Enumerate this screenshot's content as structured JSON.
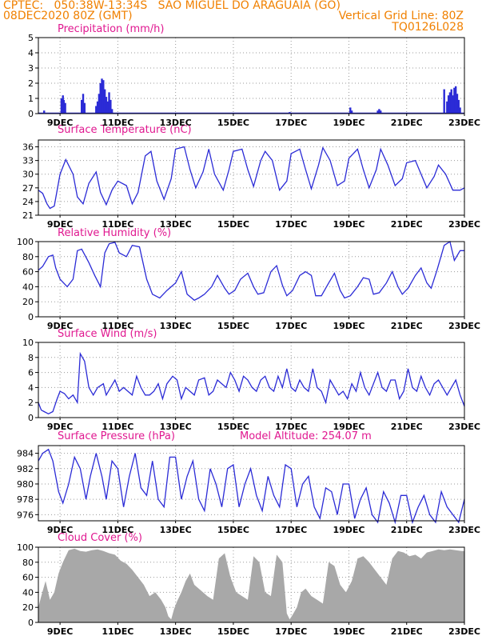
{
  "header": {
    "line1": "CPTEC:   050:38W-13:34S   SAO MIGUEL DO ARAGUAIA (GO)",
    "line2_left": "08DEC2020 80Z (GMT)",
    "line2_right": "Vertical Grid Line: 80Z",
    "line3_right": "TQ0126L028"
  },
  "colors": {
    "line": "#2b2bd6",
    "bar": "#2b2bd6",
    "cloud": "#a8a8a8",
    "title": "#e01890",
    "header": "#f08000",
    "grid": "#9a9a9a"
  },
  "chart_data": [
    {
      "type": "bar",
      "title": "Precipitation (mm/h)",
      "ylim": [
        0,
        5
      ],
      "yticks": [
        0,
        1,
        2,
        3,
        4,
        5
      ],
      "xlim": [
        8.25,
        23
      ],
      "xticks": [
        9,
        11,
        13,
        15,
        17,
        19,
        21,
        23
      ],
      "xticklabels": [
        "9DEC",
        "11DEC",
        "13DEC",
        "15DEC",
        "17DEC",
        "19DEC",
        "21DEC",
        "23DEC"
      ],
      "grid": true,
      "x": [
        8.45,
        9.05,
        9.1,
        9.13,
        9.18,
        9.75,
        9.8,
        9.85,
        10.25,
        10.3,
        10.35,
        10.4,
        10.45,
        10.5,
        10.55,
        10.6,
        10.65,
        10.7,
        10.75,
        10.8,
        16.95,
        19.05,
        19.1,
        20.0,
        20.05,
        20.1,
        22.3,
        22.4,
        22.45,
        22.5,
        22.55,
        22.6,
        22.65,
        22.7,
        22.75,
        22.8,
        22.85
      ],
      "values": [
        0.2,
        1.0,
        1.2,
        0.9,
        0.7,
        0.9,
        1.3,
        0.7,
        0.5,
        0.8,
        1.3,
        2.0,
        2.3,
        2.2,
        1.6,
        1.1,
        0.8,
        1.4,
        0.9,
        0.3,
        0.1,
        0.4,
        0.2,
        0.2,
        0.3,
        0.2,
        1.6,
        0.8,
        1.2,
        1.4,
        1.6,
        1.2,
        1.7,
        1.8,
        1.3,
        0.9,
        0.4
      ]
    },
    {
      "type": "line",
      "title": "Surface Temperature (nC)",
      "ylim": [
        21,
        37.5
      ],
      "yticks": [
        21,
        24,
        27,
        30,
        33,
        36
      ],
      "xlim": [
        8.25,
        23
      ],
      "xticks": [
        9,
        11,
        13,
        15,
        17,
        19,
        21,
        23
      ],
      "xticklabels": [
        "9DEC",
        "11DEC",
        "13DEC",
        "15DEC",
        "17DEC",
        "19DEC",
        "21DEC",
        "23DEC"
      ],
      "grid": true,
      "x": [
        8.25,
        8.4,
        8.55,
        8.65,
        8.8,
        9.0,
        9.2,
        9.45,
        9.6,
        9.8,
        10.0,
        10.25,
        10.4,
        10.6,
        10.8,
        11.0,
        11.3,
        11.5,
        11.7,
        11.95,
        12.15,
        12.35,
        12.6,
        12.85,
        13.0,
        13.3,
        13.5,
        13.7,
        13.95,
        14.15,
        14.35,
        14.65,
        14.85,
        15.0,
        15.3,
        15.5,
        15.7,
        15.95,
        16.1,
        16.35,
        16.6,
        16.85,
        17.0,
        17.3,
        17.5,
        17.7,
        17.95,
        18.1,
        18.35,
        18.6,
        18.85,
        19.0,
        19.3,
        19.5,
        19.7,
        19.95,
        20.1,
        20.35,
        20.6,
        20.85,
        21.0,
        21.3,
        21.5,
        21.7,
        21.95,
        22.1,
        22.35,
        22.6,
        22.85,
        23.0
      ],
      "y": [
        26.5,
        25.8,
        23.5,
        22.5,
        23,
        30,
        33.2,
        30,
        25,
        23.5,
        28,
        30.5,
        26,
        23.3,
        26.5,
        28.5,
        27.5,
        23.5,
        26,
        34,
        35,
        28.5,
        24.5,
        29,
        35.5,
        36,
        31,
        27,
        30.5,
        35.5,
        30,
        26.5,
        31,
        35,
        35.5,
        31,
        27.3,
        33,
        35,
        33,
        26.5,
        28.5,
        34.5,
        35.5,
        31,
        26.8,
        32,
        35.8,
        33,
        27.5,
        28.5,
        33.5,
        35.5,
        31,
        27,
        31,
        35.5,
        32,
        27.5,
        29,
        32.5,
        33,
        30,
        27,
        29.5,
        32,
        30,
        26.5,
        26.5,
        27
      ]
    },
    {
      "type": "line",
      "title": "Relative Humidity (%)",
      "ylim": [
        0,
        100
      ],
      "yticks": [
        0,
        20,
        40,
        60,
        80,
        100
      ],
      "xlim": [
        8.25,
        23
      ],
      "xticks": [
        9,
        11,
        13,
        15,
        17,
        19,
        21,
        23
      ],
      "xticklabels": [
        "9DEC",
        "11DEC",
        "13DEC",
        "15DEC",
        "17DEC",
        "19DEC",
        "21DEC",
        "23DEC"
      ],
      "grid": true,
      "x": [
        8.25,
        8.4,
        8.6,
        8.75,
        8.85,
        9.0,
        9.25,
        9.45,
        9.6,
        9.75,
        10.0,
        10.2,
        10.4,
        10.55,
        10.7,
        10.9,
        11.05,
        11.3,
        11.5,
        11.75,
        12.0,
        12.2,
        12.45,
        12.7,
        13.0,
        13.2,
        13.4,
        13.65,
        13.8,
        14.0,
        14.25,
        14.45,
        14.7,
        14.85,
        15.05,
        15.25,
        15.5,
        15.7,
        15.85,
        16.05,
        16.3,
        16.5,
        16.7,
        16.85,
        17.05,
        17.3,
        17.5,
        17.7,
        17.85,
        18.05,
        18.3,
        18.5,
        18.7,
        18.85,
        19.05,
        19.3,
        19.5,
        19.7,
        19.85,
        20.05,
        20.3,
        20.5,
        20.7,
        20.85,
        21.05,
        21.3,
        21.5,
        21.7,
        21.85,
        22.05,
        22.3,
        22.5,
        22.65,
        22.85,
        23.0
      ],
      "y": [
        62,
        67,
        80,
        82,
        65,
        50,
        40,
        50,
        88,
        90,
        72,
        55,
        40,
        85,
        97,
        99,
        85,
        80,
        95,
        93,
        50,
        30,
        25,
        35,
        45,
        60,
        30,
        22,
        25,
        30,
        40,
        55,
        38,
        30,
        35,
        50,
        58,
        40,
        30,
        32,
        60,
        68,
        42,
        28,
        35,
        55,
        60,
        55,
        28,
        28,
        45,
        58,
        35,
        25,
        28,
        40,
        52,
        50,
        30,
        32,
        45,
        60,
        40,
        30,
        38,
        55,
        65,
        45,
        38,
        62,
        95,
        100,
        75,
        88,
        88
      ]
    },
    {
      "type": "line",
      "title": "Surface Wind (m/s)",
      "ylim": [
        0,
        10
      ],
      "yticks": [
        0,
        2,
        4,
        6,
        8,
        10
      ],
      "xlim": [
        8.25,
        23
      ],
      "xticks": [
        9,
        11,
        13,
        15,
        17,
        19,
        21,
        23
      ],
      "xticklabels": [
        "9DEC",
        "11DEC",
        "13DEC",
        "15DEC",
        "17DEC",
        "19DEC",
        "21DEC",
        "23DEC"
      ],
      "grid": true,
      "x": [
        8.25,
        8.35,
        8.45,
        8.6,
        8.75,
        8.9,
        9.0,
        9.15,
        9.3,
        9.45,
        9.6,
        9.7,
        9.85,
        10.0,
        10.15,
        10.3,
        10.5,
        10.6,
        10.75,
        10.9,
        11.05,
        11.2,
        11.35,
        11.5,
        11.65,
        11.8,
        11.95,
        12.1,
        12.25,
        12.4,
        12.55,
        12.7,
        12.9,
        13.05,
        13.2,
        13.35,
        13.5,
        13.65,
        13.8,
        14.0,
        14.15,
        14.3,
        14.45,
        14.6,
        14.75,
        14.9,
        15.05,
        15.2,
        15.35,
        15.5,
        15.65,
        15.8,
        15.95,
        16.1,
        16.25,
        16.4,
        16.55,
        16.7,
        16.85,
        17.0,
        17.15,
        17.3,
        17.45,
        17.6,
        17.75,
        17.9,
        18.05,
        18.2,
        18.35,
        18.5,
        18.65,
        18.8,
        18.95,
        19.1,
        19.25,
        19.4,
        19.55,
        19.7,
        19.85,
        20.0,
        20.15,
        20.3,
        20.45,
        20.6,
        20.75,
        20.9,
        21.05,
        21.2,
        21.35,
        21.5,
        21.65,
        21.8,
        21.95,
        22.1,
        22.25,
        22.4,
        22.55,
        22.7,
        22.85,
        23.0
      ],
      "y": [
        2,
        1,
        0.8,
        0.5,
        0.8,
        2.5,
        3.5,
        3.2,
        2.5,
        3,
        2,
        8.5,
        7.5,
        4,
        3,
        4,
        4.5,
        3,
        4,
        5,
        3.5,
        4,
        3.5,
        3,
        5.5,
        4,
        3,
        3,
        3.5,
        4.5,
        2.5,
        4.5,
        5.5,
        5,
        2.5,
        4,
        3.5,
        3,
        5,
        5.3,
        3,
        3.5,
        5,
        4.5,
        4,
        6,
        5,
        3.5,
        5.5,
        5,
        4,
        3.5,
        5,
        5.5,
        4,
        3.5,
        5.5,
        4,
        6.5,
        4,
        3.5,
        5,
        4,
        3.5,
        6.5,
        4,
        3.5,
        2,
        5,
        4,
        3,
        3.5,
        2.5,
        4.5,
        3.5,
        6,
        4,
        3,
        4.5,
        6,
        4,
        3.5,
        5,
        5,
        2.5,
        3.5,
        6.5,
        4,
        3.5,
        5.5,
        4,
        3,
        4.5,
        5,
        4,
        3,
        4,
        5,
        3,
        1.5
      ]
    },
    {
      "type": "line",
      "title": "Surface Pressure (hPa)",
      "annotation": "Model Altitude: 254.07 m",
      "ylim": [
        975.2,
        985.0
      ],
      "yticks": [
        976,
        978,
        980,
        982,
        984
      ],
      "xlim": [
        8.25,
        23
      ],
      "xticks": [
        9,
        11,
        13,
        15,
        17,
        19,
        21,
        23
      ],
      "xticklabels": [
        "9DEC",
        "11DEC",
        "13DEC",
        "15DEC",
        "17DEC",
        "19DEC",
        "21DEC",
        "23DEC"
      ],
      "grid": true,
      "x": [
        8.25,
        8.4,
        8.6,
        8.75,
        8.95,
        9.1,
        9.3,
        9.5,
        9.7,
        9.9,
        10.05,
        10.25,
        10.45,
        10.6,
        10.8,
        11.0,
        11.2,
        11.4,
        11.6,
        11.8,
        12.0,
        12.2,
        12.4,
        12.6,
        12.8,
        13.0,
        13.2,
        13.4,
        13.6,
        13.8,
        14.0,
        14.2,
        14.4,
        14.6,
        14.8,
        15.0,
        15.2,
        15.4,
        15.6,
        15.8,
        16.0,
        16.2,
        16.4,
        16.6,
        16.8,
        17.0,
        17.2,
        17.4,
        17.6,
        17.8,
        18.0,
        18.2,
        18.4,
        18.6,
        18.8,
        19.0,
        19.2,
        19.4,
        19.6,
        19.8,
        20.0,
        20.2,
        20.4,
        20.6,
        20.8,
        21.0,
        21.2,
        21.4,
        21.6,
        21.8,
        22.0,
        22.2,
        22.4,
        22.6,
        22.8,
        23.0
      ],
      "y": [
        983,
        984,
        984.5,
        983,
        979,
        977.5,
        980,
        983.5,
        982,
        978,
        981,
        984,
        981,
        978,
        983,
        982,
        977,
        981,
        984,
        979.5,
        978.5,
        983,
        978,
        977,
        983.5,
        983.5,
        978,
        981,
        983,
        978,
        976.5,
        982,
        980,
        977,
        982,
        982.5,
        977,
        980,
        982,
        978.5,
        976.5,
        981,
        978.5,
        977,
        982.5,
        982,
        977,
        980,
        981,
        977,
        975.5,
        979.5,
        979,
        976,
        980,
        980,
        975.5,
        978,
        979.5,
        976,
        975,
        979,
        977.5,
        975,
        978.5,
        978.5,
        975,
        977,
        978.5,
        976,
        975,
        979,
        977,
        976,
        975,
        978
      ]
    },
    {
      "type": "area",
      "title": "Cloud Cover (%)",
      "ylim": [
        0,
        100
      ],
      "yticks": [
        0,
        20,
        40,
        60,
        80,
        100
      ],
      "xlim": [
        8.25,
        23
      ],
      "xticks": [
        9,
        11,
        13,
        15,
        17,
        19,
        21,
        23
      ],
      "xticklabels": [
        "9DEC",
        "11DEC",
        "13DEC",
        "15DEC",
        "17DEC",
        "19DEC",
        "21DEC",
        "23DEC"
      ],
      "grid": true,
      "x": [
        8.25,
        8.35,
        8.5,
        8.65,
        8.8,
        8.95,
        9.1,
        9.3,
        9.5,
        9.7,
        9.9,
        10.1,
        10.3,
        10.5,
        10.7,
        10.9,
        11.1,
        11.3,
        11.5,
        11.7,
        11.9,
        12.1,
        12.3,
        12.5,
        12.65,
        12.75,
        12.85,
        12.95,
        13.05,
        13.2,
        13.35,
        13.5,
        13.65,
        13.8,
        13.95,
        14.1,
        14.3,
        14.5,
        14.7,
        14.9,
        15.1,
        15.3,
        15.5,
        15.7,
        15.9,
        16.1,
        16.3,
        16.5,
        16.7,
        16.85,
        16.95,
        17.05,
        17.2,
        17.35,
        17.5,
        17.7,
        17.9,
        18.1,
        18.3,
        18.5,
        18.7,
        18.9,
        19.1,
        19.3,
        19.5,
        19.7,
        19.9,
        20.1,
        20.3,
        20.5,
        20.7,
        20.9,
        21.1,
        21.3,
        21.5,
        21.7,
        21.9,
        22.1,
        22.3,
        22.5,
        22.7,
        22.9,
        23.0
      ],
      "y": [
        20,
        35,
        55,
        30,
        40,
        65,
        80,
        96,
        98,
        95,
        94,
        96,
        97,
        95,
        92,
        90,
        82,
        78,
        70,
        60,
        50,
        35,
        40,
        30,
        20,
        8,
        4,
        18,
        28,
        40,
        55,
        65,
        50,
        45,
        40,
        35,
        30,
        85,
        92,
        60,
        40,
        35,
        30,
        88,
        80,
        40,
        35,
        90,
        80,
        12,
        4,
        10,
        20,
        40,
        45,
        35,
        30,
        25,
        80,
        75,
        50,
        40,
        55,
        85,
        88,
        80,
        70,
        60,
        50,
        85,
        95,
        93,
        88,
        90,
        85,
        93,
        95,
        97,
        96,
        97,
        96,
        95,
        95
      ]
    }
  ]
}
